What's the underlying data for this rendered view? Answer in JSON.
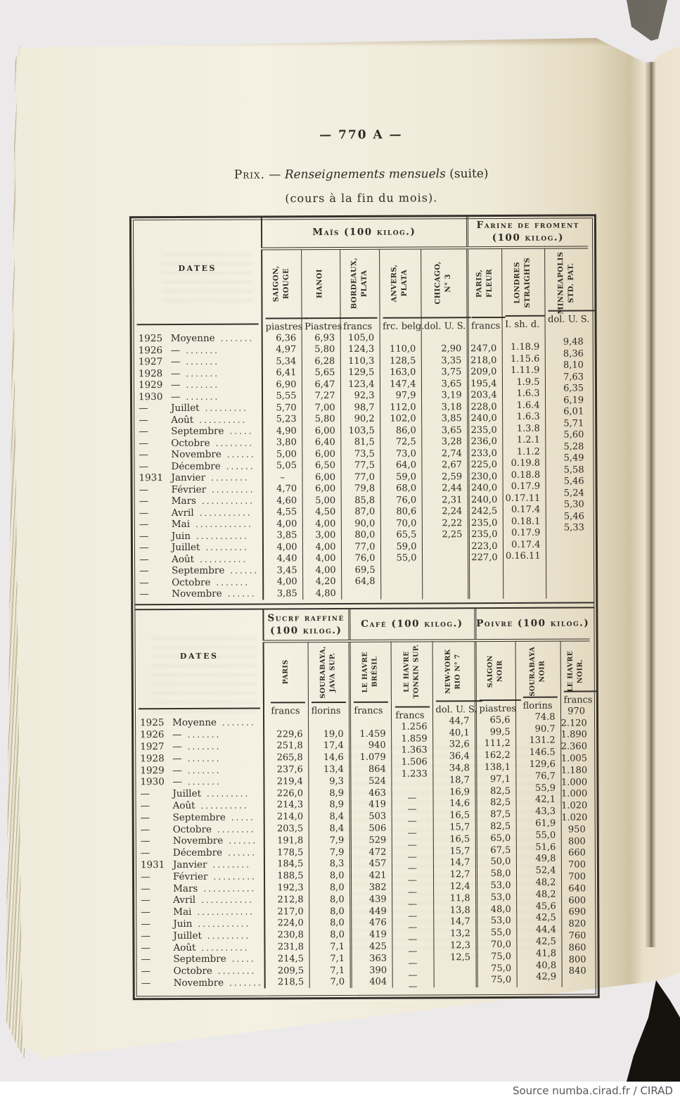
{
  "page": {
    "page_number": "— 770 A —",
    "title_prefix": "Prix.",
    "title_dash": "—",
    "title_main": "Renseignements mensuels",
    "title_suffix": "(suite)",
    "subtitle": "(cours à la fin du mois).",
    "source_credit": "Source numba.cirad.fr / CIRAD",
    "page_color": "#f2eedd",
    "line_color": "#35302a"
  },
  "table1": {
    "dates_header": "DATES",
    "groups": [
      {
        "title": "Maïs (100 kilog.)"
      },
      {
        "title": "Farine de froment\n(100 kilog.)"
      }
    ],
    "columns": [
      {
        "label": "SAIGON,\nROUGE",
        "unit": "piastres"
      },
      {
        "label": "HANOI",
        "unit": "Piastres"
      },
      {
        "label": "BORDEAUX,\nPLATA",
        "unit": "francs"
      },
      {
        "label": "ANVERS,\nPLATA",
        "unit": "frc. belg."
      },
      {
        "label": "CHICAGO,\nN° 3",
        "unit": "dol. U. S."
      },
      {
        "label": "PARIS,\nFLEUR",
        "unit": "francs"
      },
      {
        "label": "LONDRES\nSTRAIGHTS",
        "unit": "I. sh. d."
      },
      {
        "label": "MINNEAPOLIS\nSTD. PAT.",
        "unit": "dol. U. S."
      }
    ],
    "rows": [
      {
        "year": "1925",
        "name": "Moyenne",
        "dots": ".......",
        "values": [
          "6,36",
          "6,93",
          "105,0",
          "",
          "",
          "",
          "",
          ""
        ]
      },
      {
        "year": "1926",
        "name": "—",
        "dots": ".......",
        "values": [
          "4,97",
          "5,80",
          "124,3",
          "110,0",
          "2,90",
          "247,0",
          "1.18.9",
          "9,48"
        ]
      },
      {
        "year": "1927",
        "name": "—",
        "dots": ".......",
        "values": [
          "5,34",
          "6,28",
          "110,3",
          "128,5",
          "3,35",
          "218,0",
          "1.15.6",
          "8,36"
        ]
      },
      {
        "year": "1928",
        "name": "—",
        "dots": ".......",
        "values": [
          "6,41",
          "5,65",
          "129,5",
          "163,0",
          "3,75",
          "209,0",
          "1.11.9",
          "8,10"
        ]
      },
      {
        "year": "1929",
        "name": "—",
        "dots": ".......",
        "values": [
          "6,90",
          "6,47",
          "123,4",
          "147,4",
          "3,65",
          "195,4",
          "1.9.5",
          "7,63"
        ]
      },
      {
        "year": "1930",
        "name": "—",
        "dots": ".......",
        "values": [
          "5,55",
          "7,27",
          "92,3",
          "97,9",
          "3,19",
          "203,4",
          "1.6.3",
          "6,35"
        ]
      },
      {
        "year": "—",
        "name": "Juillet",
        "dots": ".........",
        "values": [
          "5,70",
          "7,00",
          "98,7",
          "112,0",
          "3,18",
          "228,0",
          "1.6.4",
          "6,19"
        ]
      },
      {
        "year": "—",
        "name": "Août",
        "dots": "..........",
        "values": [
          "5,23",
          "5,80",
          "90,2",
          "102,0",
          "3,85",
          "240,0",
          "1.6.3",
          "6,01"
        ]
      },
      {
        "year": "—",
        "name": "Septembre",
        "dots": ".....",
        "values": [
          "4,90",
          "6,00",
          "103,5",
          "86,0",
          "3,65",
          "235,0",
          "1.3.8",
          "5,71"
        ]
      },
      {
        "year": "—",
        "name": "Octobre",
        "dots": "........",
        "values": [
          "3,80",
          "6,40",
          "81,5",
          "72,5",
          "3,28",
          "236,0",
          "1.2.1",
          "5,60"
        ]
      },
      {
        "year": "—",
        "name": "Novembre",
        "dots": "......",
        "values": [
          "5,00",
          "6,00",
          "73,5",
          "73,0",
          "2,74",
          "233,0",
          "1.1.2",
          "5,28"
        ]
      },
      {
        "year": "—",
        "name": "Décembre",
        "dots": "......",
        "values": [
          "5,05",
          "6,50",
          "77,5",
          "64,0",
          "2,67",
          "225,0",
          "0.19.8",
          "5,49"
        ]
      },
      {
        "year": "1931",
        "name": "Janvier",
        "dots": "........",
        "values": [
          "–",
          "6,00",
          "77,0",
          "59,0",
          "2,59",
          "230,0",
          "0.18.8",
          "5,58"
        ]
      },
      {
        "year": "—",
        "name": "Février",
        "dots": ".........",
        "values": [
          "4,70",
          "6,00",
          "79,8",
          "68,0",
          "2,44",
          "240,0",
          "0.17.9",
          "5,46"
        ]
      },
      {
        "year": "—",
        "name": "Mars",
        "dots": "...........",
        "values": [
          "4,60",
          "5,00",
          "85,8",
          "76,0",
          "2,31",
          "240,0",
          "0.17.11",
          "5,24"
        ]
      },
      {
        "year": "—",
        "name": "Avril",
        "dots": "...........",
        "values": [
          "4,55",
          "4,50",
          "87,0",
          "80,6",
          "2,24",
          "242,5",
          "0.17.4",
          "5,30"
        ]
      },
      {
        "year": "—",
        "name": "Mai",
        "dots": "............",
        "values": [
          "4,00",
          "4,00",
          "90,0",
          "70,0",
          "2,22",
          "235,0",
          "0.18.1",
          "5,46"
        ]
      },
      {
        "year": "—",
        "name": "Juin",
        "dots": "...........",
        "values": [
          "3,85",
          "3,00",
          "80,0",
          "65,5",
          "2,25",
          "235,0",
          "0.17.9",
          "5,33"
        ]
      },
      {
        "year": "—",
        "name": "Juillet",
        "dots": ".........",
        "values": [
          "4,00",
          "4,00",
          "77,0",
          "59,0",
          "",
          "223,0",
          "0.17.4",
          ""
        ]
      },
      {
        "year": "—",
        "name": "Août",
        "dots": "..........",
        "values": [
          "4,40",
          "4,00",
          "76,0",
          "55,0",
          "",
          "227,0",
          "0.16.11",
          ""
        ]
      },
      {
        "year": "—",
        "name": "Septembre",
        "dots": "......",
        "values": [
          "3,45",
          "4,00",
          "69,5",
          "",
          "",
          "",
          "",
          ""
        ]
      },
      {
        "year": "—",
        "name": "Octobre",
        "dots": ".......",
        "values": [
          "4,00",
          "4,20",
          "64,8",
          "",
          "",
          "",
          "",
          ""
        ]
      },
      {
        "year": "—",
        "name": "Novembre",
        "dots": "......",
        "values": [
          "3,85",
          "4,80",
          "",
          "",
          "",
          "",
          "",
          ""
        ]
      }
    ]
  },
  "table2": {
    "dates_header": "DATES",
    "groups": [
      {
        "title": "Sucrf raffiné\n(100 kilog.)"
      },
      {
        "title": "Café (100 kilog.)"
      },
      {
        "title": "Poivre (100 kilog.)"
      }
    ],
    "columns": [
      {
        "label": "PARIS",
        "unit": "francs"
      },
      {
        "label": "SOURABAYA,\nJAVA SUP.",
        "unit": "florins"
      },
      {
        "label": "LE HAVRE\nBRÉSIL",
        "unit": "francs"
      },
      {
        "label": "LE HAVRE\nTONKIN SUP.",
        "unit": "francs"
      },
      {
        "label": "NEW-YORK\nRIO N° 7",
        "unit": "dol. U. S."
      },
      {
        "label": "SAIGON\nNOIR",
        "unit": "piastres"
      },
      {
        "label": "SOURABAYA\nNOIR",
        "unit": "florins"
      },
      {
        "label": "LE HAVRE\nNOIR.",
        "unit": "francs"
      }
    ],
    "rows": [
      {
        "year": "1925",
        "name": "Moyenne",
        "dots": ".......",
        "values": [
          "",
          "",
          "",
          "1.256",
          "44,7",
          "65,6",
          "74.8",
          "970"
        ]
      },
      {
        "year": "1926",
        "name": "—",
        "dots": ".......",
        "values": [
          "229,6",
          "19,0",
          "1.459",
          "1.859",
          "40,1",
          "99,5",
          "90.7",
          "2.120"
        ]
      },
      {
        "year": "1927",
        "name": "—",
        "dots": ".......",
        "values": [
          "251,8",
          "17,4",
          "940",
          "1.363",
          "32,6",
          "111,2",
          "131.2",
          "1.890"
        ]
      },
      {
        "year": "1928",
        "name": "—",
        "dots": ".......",
        "values": [
          "265,8",
          "14,6",
          "1.079",
          "1.506",
          "36,4",
          "162,2",
          "146.5",
          "2.360"
        ]
      },
      {
        "year": "1929",
        "name": "—",
        "dots": ".......",
        "values": [
          "237,6",
          "13,4",
          "864",
          "1.233",
          "34,8",
          "138,1",
          "129,6",
          "1.005"
        ]
      },
      {
        "year": "1930",
        "name": "—",
        "dots": ".......",
        "values": [
          "219,4",
          "9,3",
          "524",
          "",
          "18,7",
          "97,1",
          "76,7",
          "1.180"
        ]
      },
      {
        "year": "—",
        "name": "Juillet",
        "dots": ".........",
        "values": [
          "226,0",
          "8,9",
          "463",
          "—",
          "16,9",
          "82,5",
          "55,9",
          "1.000"
        ]
      },
      {
        "year": "—",
        "name": "Août",
        "dots": "..........",
        "values": [
          "214,3",
          "8,9",
          "419",
          "—",
          "14,6",
          "82,5",
          "42,1",
          "1.000"
        ]
      },
      {
        "year": "—",
        "name": "Septembre",
        "dots": ".....",
        "values": [
          "214,0",
          "8,4",
          "503",
          "—",
          "16,5",
          "87,5",
          "43,3",
          "1.020"
        ]
      },
      {
        "year": "—",
        "name": "Octobre",
        "dots": "........",
        "values": [
          "203,5",
          "8,4",
          "506",
          "—",
          "15,7",
          "82,5",
          "61,9",
          "1.020"
        ]
      },
      {
        "year": "—",
        "name": "Novembre",
        "dots": "......",
        "values": [
          "191,8",
          "7,9",
          "529",
          "—",
          "16,5",
          "65,0",
          "55,0",
          "950"
        ]
      },
      {
        "year": "—",
        "name": "Décembre",
        "dots": "......",
        "values": [
          "178,5",
          "7,9",
          "472",
          "—",
          "15,7",
          "67,5",
          "51,6",
          "800"
        ]
      },
      {
        "year": "1931",
        "name": "Janvier",
        "dots": "........",
        "values": [
          "184,5",
          "8,3",
          "457",
          "—",
          "14,7",
          "50,0",
          "49,8",
          "660"
        ]
      },
      {
        "year": "—",
        "name": "Février",
        "dots": ".........",
        "values": [
          "188,5",
          "8,0",
          "421",
          "—",
          "12,7",
          "58,0",
          "52,4",
          "700"
        ]
      },
      {
        "year": "—",
        "name": "Mars",
        "dots": "...........",
        "values": [
          "192,3",
          "8,0",
          "382",
          "—",
          "12,4",
          "53,0",
          "48,2",
          "700"
        ]
      },
      {
        "year": "—",
        "name": "Avril",
        "dots": "...........",
        "values": [
          "212,8",
          "8,0",
          "439",
          "—",
          "11,8",
          "53,0",
          "48,2",
          "640"
        ]
      },
      {
        "year": "—",
        "name": "Mai",
        "dots": "............",
        "values": [
          "217,0",
          "8,0",
          "449",
          "—",
          "13,8",
          "48,0",
          "45,6",
          "600"
        ]
      },
      {
        "year": "—",
        "name": "Juin",
        "dots": "...........",
        "values": [
          "224,0",
          "8,0",
          "476",
          "—",
          "14,7",
          "53,0",
          "42,5",
          "690"
        ]
      },
      {
        "year": "—",
        "name": "Juillet",
        "dots": ".........",
        "values": [
          "230,8",
          "8,0",
          "419",
          "—",
          "13,2",
          "55,0",
          "44,4",
          "820"
        ]
      },
      {
        "year": "—",
        "name": "Août",
        "dots": "..........",
        "values": [
          "231,8",
          "7,1",
          "425",
          "—",
          "12,3",
          "70,0",
          "42,5",
          "760"
        ]
      },
      {
        "year": "—",
        "name": "Septembre",
        "dots": ".....",
        "values": [
          "214,5",
          "7,1",
          "363",
          "—",
          "12,5",
          "75,0",
          "41,8",
          "860"
        ]
      },
      {
        "year": "—",
        "name": "Octobre",
        "dots": "........",
        "values": [
          "209,5",
          "7,1",
          "390",
          "—",
          "",
          "75,0",
          "40,8",
          "800"
        ]
      },
      {
        "year": "—",
        "name": "Novembre",
        "dots": ".......",
        "values": [
          "218,5",
          "7,0",
          "404",
          "—",
          "",
          "75,0",
          "42,9",
          "840"
        ]
      }
    ]
  }
}
